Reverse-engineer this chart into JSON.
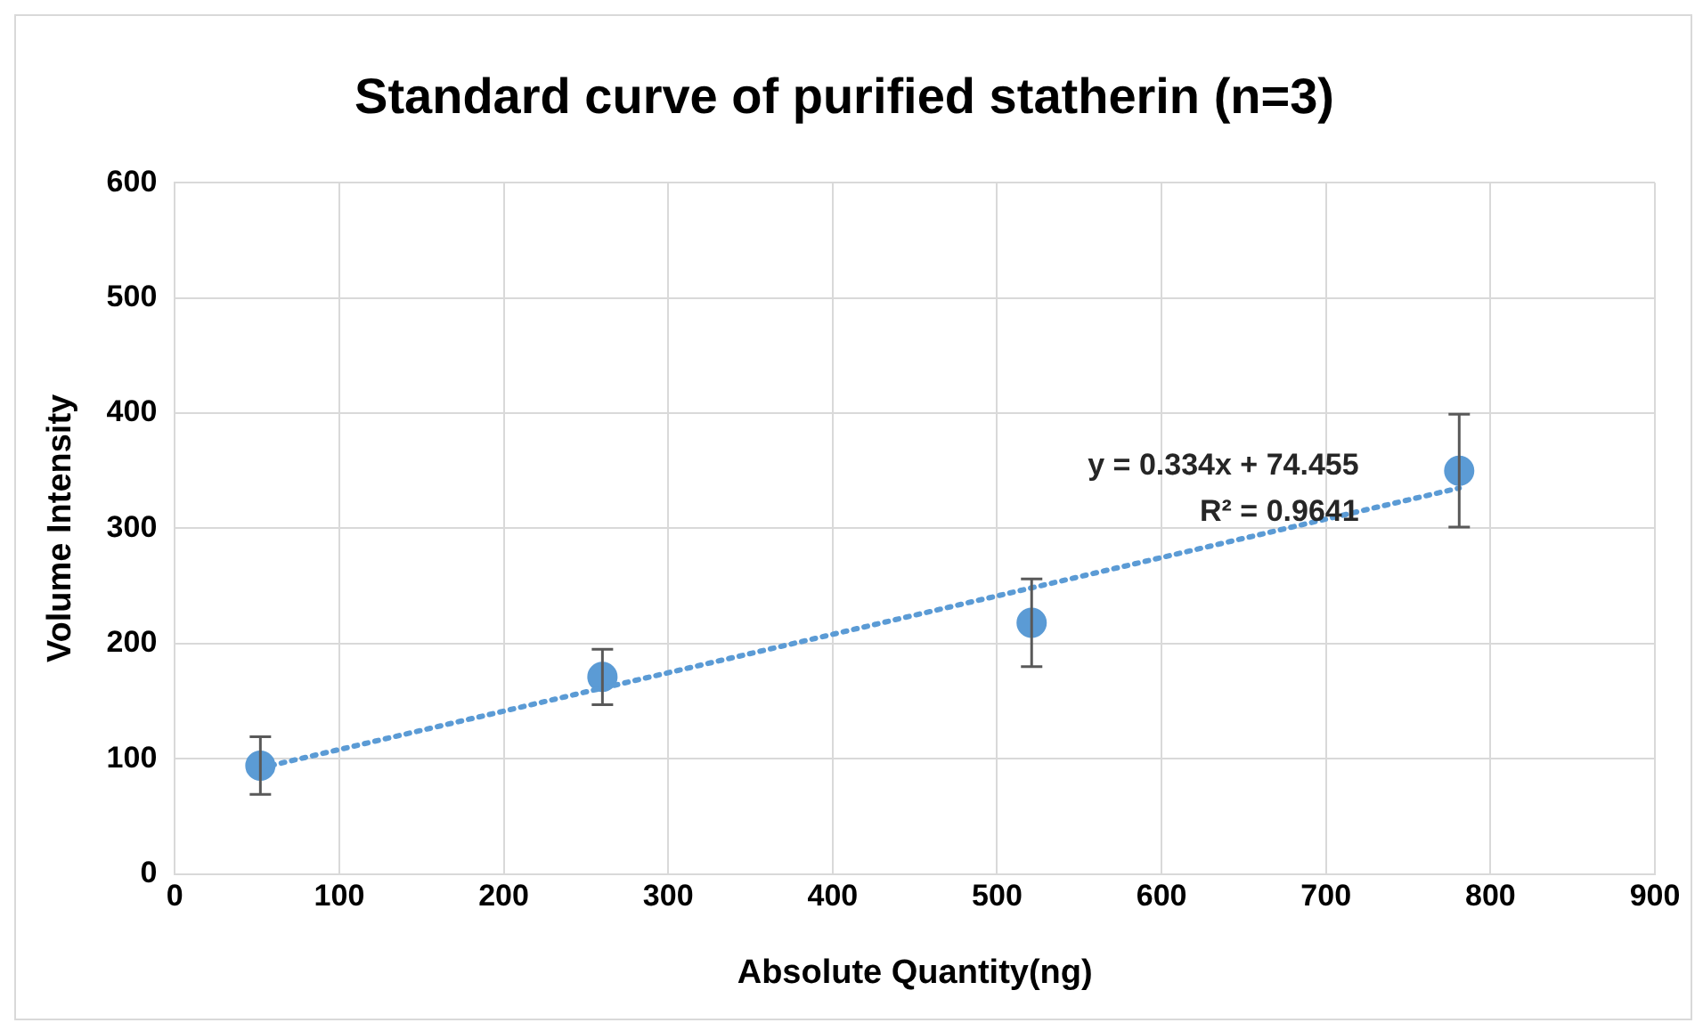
{
  "chart_data": {
    "type": "scatter",
    "title": "Standard curve of purified statherin (n=3)",
    "xlabel": "Absolute Quantity(ng)",
    "ylabel": "Volume Intensity",
    "series": [
      {
        "type": "scatter",
        "color": "#5b9bd5",
        "x": [
          52,
          260,
          521,
          781
        ],
        "values": [
          94,
          171,
          218,
          350
        ],
        "errors": [
          25,
          24,
          38,
          49
        ],
        "marker": "circle"
      },
      {
        "type": "line",
        "color": "#5b9bd5",
        "x": [
          52,
          781
        ],
        "values": [
          92,
          335
        ],
        "line_style": "dotted",
        "marker": "none"
      }
    ],
    "annotations": [
      "y = 0.334x + 74.455",
      "R² = 0.9641"
    ],
    "xlim": [
      0,
      900
    ],
    "xticks": [
      0,
      100,
      200,
      300,
      400,
      500,
      600,
      700,
      800,
      900
    ],
    "ylim": [
      0,
      600
    ],
    "yticks": [
      0,
      100,
      200,
      300,
      400,
      500,
      600
    ],
    "grid": true,
    "legend": false
  }
}
